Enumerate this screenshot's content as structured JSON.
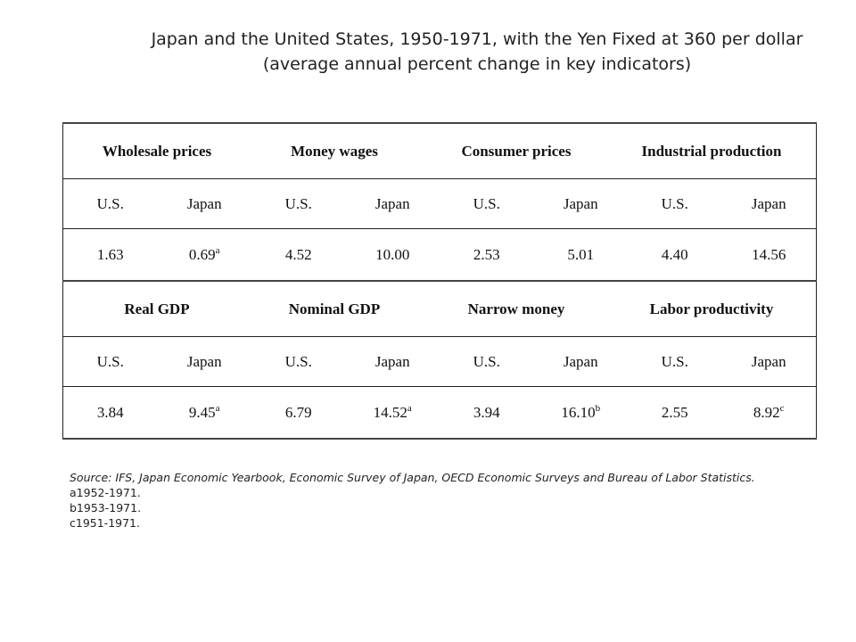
{
  "title": {
    "line1": "Japan and the United States, 1950-1971, with the Yen Fixed at 360 per dollar",
    "line2": "(average annual percent change in key indicators)"
  },
  "table": {
    "block1": {
      "headers": [
        "Wholesale prices",
        "Money wages",
        "Consumer prices",
        "Industrial production"
      ],
      "sub": [
        "U.S.",
        "Japan",
        "U.S.",
        "Japan",
        "U.S.",
        "Japan",
        "U.S.",
        "Japan"
      ],
      "values": [
        {
          "v": "1.63",
          "sup": ""
        },
        {
          "v": "0.69",
          "sup": "a"
        },
        {
          "v": "4.52",
          "sup": ""
        },
        {
          "v": "10.00",
          "sup": ""
        },
        {
          "v": "2.53",
          "sup": ""
        },
        {
          "v": "5.01",
          "sup": ""
        },
        {
          "v": "4.40",
          "sup": ""
        },
        {
          "v": "14.56",
          "sup": ""
        }
      ]
    },
    "block2": {
      "headers": [
        "Real GDP",
        "Nominal GDP",
        "Narrow money",
        "Labor productivity"
      ],
      "sub": [
        "U.S.",
        "Japan",
        "U.S.",
        "Japan",
        "U.S.",
        "Japan",
        "U.S.",
        "Japan"
      ],
      "values": [
        {
          "v": "3.84",
          "sup": ""
        },
        {
          "v": "9.45",
          "sup": "a"
        },
        {
          "v": "6.79",
          "sup": ""
        },
        {
          "v": "14.52",
          "sup": "a"
        },
        {
          "v": "3.94",
          "sup": ""
        },
        {
          "v": "16.10",
          "sup": "b"
        },
        {
          "v": "2.55",
          "sup": ""
        },
        {
          "v": "8.92",
          "sup": "c"
        }
      ]
    }
  },
  "footnotes": {
    "source": "Source: IFS, Japan Economic Yearbook, Economic Survey of Japan, OECD Economic Surveys and Bureau of Labor Statistics.",
    "notes": [
      "a1952-1971.",
      "b1953-1971.",
      "c1951-1971."
    ]
  }
}
